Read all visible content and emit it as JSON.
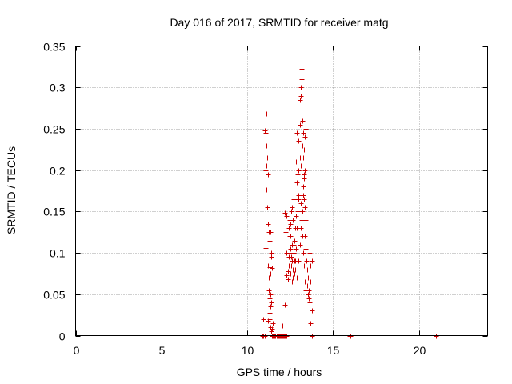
{
  "chart_data": {
    "type": "scatter",
    "title": "Day 016 of 2017, SRMTID for receiver matg",
    "xlabel": "GPS time / hours",
    "ylabel": "SRMTID / TECUs",
    "xlim": [
      0,
      24
    ],
    "ylim": [
      0,
      0.35
    ],
    "grid": true,
    "marker": "+",
    "colors": {
      "points": "#cc0000",
      "grid": "#a0a0a0",
      "axes": "#000000"
    },
    "x_ticks": [
      {
        "value": 0,
        "label": "0"
      },
      {
        "value": 5,
        "label": "5"
      },
      {
        "value": 10,
        "label": "10"
      },
      {
        "value": 15,
        "label": "15"
      },
      {
        "value": 20,
        "label": "20"
      }
    ],
    "y_ticks": [
      {
        "value": 0,
        "label": "0"
      },
      {
        "value": 0.05,
        "label": "0.05"
      },
      {
        "value": 0.1,
        "label": "0.1"
      },
      {
        "value": 0.15,
        "label": "0.15"
      },
      {
        "value": 0.2,
        "label": "0.2"
      },
      {
        "value": 0.25,
        "label": "0.25"
      },
      {
        "value": 0.3,
        "label": "0.3"
      },
      {
        "value": 0.35,
        "label": "0.35"
      }
    ],
    "series": [
      {
        "name": "SRMTID",
        "points": [
          [
            10.9,
            0
          ],
          [
            10.95,
            0
          ],
          [
            11.0,
            0
          ],
          [
            11.02,
            0
          ],
          [
            11.45,
            0
          ],
          [
            11.5,
            0
          ],
          [
            11.55,
            0
          ],
          [
            11.6,
            0
          ],
          [
            11.65,
            0
          ],
          [
            11.7,
            0
          ],
          [
            11.75,
            0
          ],
          [
            11.8,
            0
          ],
          [
            11.85,
            0
          ],
          [
            11.9,
            0
          ],
          [
            11.95,
            0
          ],
          [
            12.0,
            0
          ],
          [
            12.05,
            0
          ],
          [
            12.1,
            0
          ],
          [
            12.15,
            0
          ],
          [
            12.2,
            0
          ],
          [
            12.25,
            0
          ],
          [
            12.3,
            0
          ],
          [
            13.75,
            0
          ],
          [
            15.95,
            0
          ],
          [
            16.0,
            0
          ],
          [
            21.0,
            0
          ],
          [
            10.95,
            0.02
          ],
          [
            11.2,
            0.018
          ],
          [
            11.35,
            0.01
          ],
          [
            11.4,
            0.005
          ],
          [
            11.45,
            0.008
          ],
          [
            11.5,
            0.015
          ],
          [
            12.05,
            0.012
          ],
          [
            12.2,
            0.037
          ],
          [
            13.7,
            0.015
          ],
          [
            13.75,
            0.03
          ],
          [
            11.1,
            0.268
          ],
          [
            11.0,
            0.248
          ],
          [
            11.05,
            0.245
          ],
          [
            11.1,
            0.23
          ],
          [
            11.15,
            0.215
          ],
          [
            11.1,
            0.205
          ],
          [
            11.2,
            0.195
          ],
          [
            11.05,
            0.2
          ],
          [
            11.1,
            0.176
          ],
          [
            11.15,
            0.155
          ],
          [
            11.2,
            0.135
          ],
          [
            11.25,
            0.125
          ],
          [
            11.05,
            0.106
          ],
          [
            11.35,
            0.125
          ],
          [
            11.3,
            0.115
          ],
          [
            11.4,
            0.1
          ],
          [
            11.2,
            0.085
          ],
          [
            11.3,
            0.083
          ],
          [
            11.35,
            0.075
          ],
          [
            11.3,
            0.065
          ],
          [
            11.25,
            0.055
          ],
          [
            11.35,
            0.05
          ],
          [
            11.3,
            0.045
          ],
          [
            11.4,
            0.04
          ],
          [
            11.35,
            0.035
          ],
          [
            11.3,
            0.028
          ],
          [
            11.4,
            0.095
          ],
          [
            11.45,
            0.082
          ],
          [
            11.25,
            0.07
          ],
          [
            11.3,
            0.02
          ],
          [
            12.3,
            0.073
          ],
          [
            12.35,
            0.068
          ],
          [
            12.4,
            0.085
          ],
          [
            12.45,
            0.1
          ],
          [
            12.5,
            0.12
          ],
          [
            12.45,
            0.14
          ],
          [
            12.55,
            0.15
          ],
          [
            12.5,
            0.135
          ],
          [
            12.6,
            0.11
          ],
          [
            12.55,
            0.095
          ],
          [
            12.65,
            0.08
          ],
          [
            12.6,
            0.065
          ],
          [
            12.7,
            0.06
          ],
          [
            12.75,
            0.075
          ],
          [
            12.8,
            0.09
          ],
          [
            12.85,
            0.105
          ],
          [
            12.9,
            0.13
          ],
          [
            12.95,
            0.15
          ],
          [
            13.0,
            0.165
          ],
          [
            12.9,
            0.185
          ],
          [
            13.0,
            0.2
          ],
          [
            12.85,
            0.21
          ],
          [
            12.95,
            0.22
          ],
          [
            13.0,
            0.235
          ],
          [
            12.9,
            0.245
          ],
          [
            13.05,
            0.255
          ],
          [
            13.05,
            0.285
          ],
          [
            13.1,
            0.3
          ],
          [
            13.15,
            0.31
          ],
          [
            13.15,
            0.322
          ],
          [
            13.1,
            0.29
          ],
          [
            13.2,
            0.26
          ],
          [
            13.25,
            0.245
          ],
          [
            13.2,
            0.23
          ],
          [
            13.25,
            0.215
          ],
          [
            13.3,
            0.195
          ],
          [
            13.25,
            0.18
          ],
          [
            13.3,
            0.165
          ],
          [
            13.35,
            0.155
          ],
          [
            13.4,
            0.14
          ],
          [
            13.35,
            0.12
          ],
          [
            13.4,
            0.105
          ],
          [
            13.45,
            0.09
          ],
          [
            13.5,
            0.08
          ],
          [
            13.55,
            0.07
          ],
          [
            13.5,
            0.06
          ],
          [
            13.55,
            0.05
          ],
          [
            13.6,
            0.045
          ],
          [
            13.65,
            0.04
          ],
          [
            13.6,
            0.055
          ],
          [
            13.7,
            0.065
          ],
          [
            13.65,
            0.075
          ],
          [
            13.7,
            0.085
          ],
          [
            13.75,
            0.09
          ],
          [
            13.65,
            0.1
          ],
          [
            12.45,
            0.12
          ],
          [
            12.5,
            0.105
          ],
          [
            12.55,
            0.085
          ],
          [
            12.65,
            0.07
          ],
          [
            12.7,
            0.1
          ],
          [
            12.75,
            0.115
          ],
          [
            12.8,
            0.13
          ],
          [
            12.85,
            0.145
          ],
          [
            12.6,
            0.155
          ],
          [
            12.7,
            0.165
          ],
          [
            12.65,
            0.14
          ],
          [
            12.75,
            0.09
          ],
          [
            12.8,
            0.08
          ],
          [
            12.9,
            0.07
          ],
          [
            12.95,
            0.08
          ],
          [
            13.0,
            0.09
          ],
          [
            13.05,
            0.11
          ],
          [
            13.1,
            0.13
          ],
          [
            13.15,
            0.14
          ],
          [
            13.2,
            0.15
          ],
          [
            13.25,
            0.17
          ],
          [
            13.3,
            0.19
          ],
          [
            13.35,
            0.2
          ],
          [
            13.3,
            0.225
          ],
          [
            13.35,
            0.24
          ],
          [
            13.4,
            0.25
          ],
          [
            13.05,
            0.215
          ],
          [
            13.1,
            0.205
          ],
          [
            12.95,
            0.195
          ],
          [
            13.0,
            0.17
          ],
          [
            13.1,
            0.16
          ],
          [
            13.2,
            0.12
          ],
          [
            13.25,
            0.1
          ],
          [
            13.3,
            0.085
          ],
          [
            13.35,
            0.065
          ],
          [
            13.4,
            0.055
          ],
          [
            12.4,
            0.095
          ],
          [
            12.35,
            0.078
          ],
          [
            12.3,
            0.1
          ],
          [
            12.25,
            0.125
          ],
          [
            12.2,
            0.148
          ],
          [
            12.3,
            0.145
          ],
          [
            12.4,
            0.13
          ],
          [
            12.5,
            0.075
          ],
          [
            12.6,
            0.09
          ],
          [
            12.7,
            0.11
          ]
        ]
      }
    ]
  }
}
